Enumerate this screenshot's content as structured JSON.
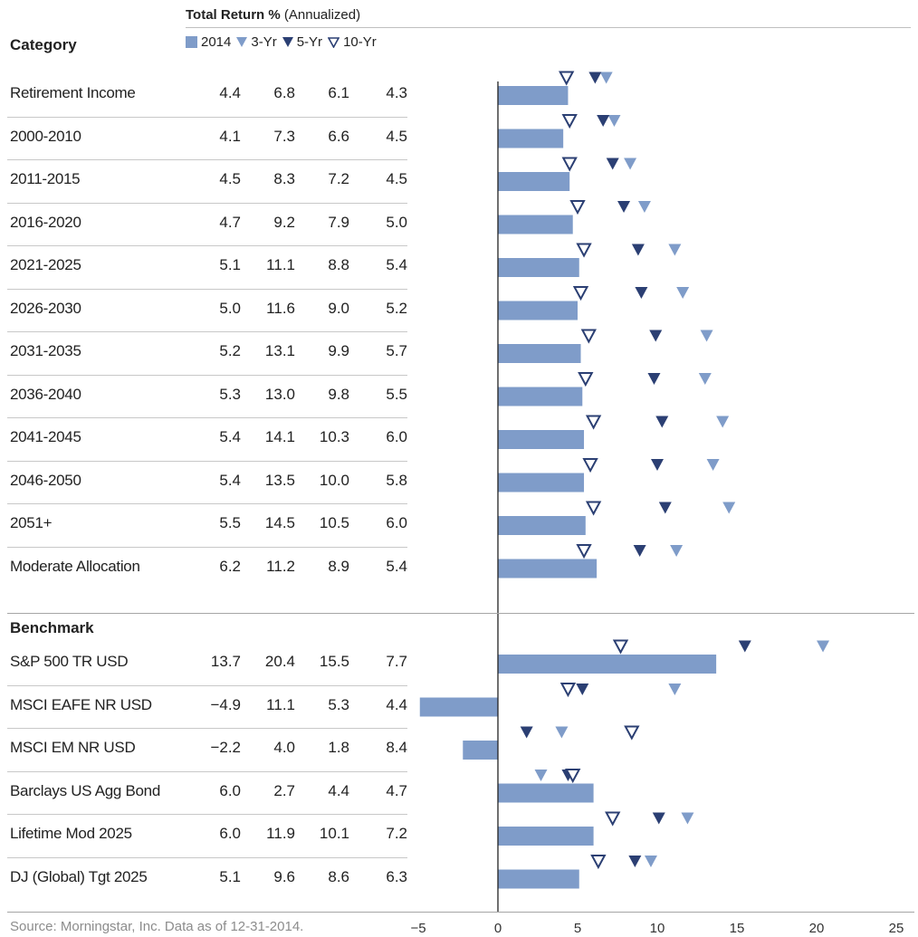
{
  "header": {
    "title_bold": "Total Return %",
    "title_rest": " (Annualized)",
    "category_label": "Category",
    "benchmark_label": "Benchmark"
  },
  "legend": [
    {
      "label": "2014",
      "shape": "square",
      "color": "#7f9cc9"
    },
    {
      "label": "3-Yr",
      "shape": "filled-triangle",
      "color": "#7f9cc9"
    },
    {
      "label": "5-Yr",
      "shape": "filled-triangle",
      "color": "#2b3f73"
    },
    {
      "label": "10-Yr",
      "shape": "open-triangle",
      "color": "#2b3f73"
    }
  ],
  "footer": "Source: Morningstar, Inc. Data as of 12-31-2014.",
  "chart_data": {
    "type": "bar",
    "title": "Total Return % (Annualized)",
    "xlim": [
      -5,
      25
    ],
    "xticks": [
      "−5",
      "0",
      "5",
      "10",
      "15",
      "20",
      "25"
    ],
    "xtick_values": [
      -5,
      0,
      5,
      10,
      15,
      20,
      25
    ],
    "colors": {
      "bar": "#7f9cc9",
      "three_yr": "#7f9cc9",
      "five_yr": "#2b3f73",
      "ten_yr": "#2b3f73"
    },
    "categories": [
      {
        "name": "Retirement Income",
        "v2014": 4.4,
        "y3": 6.8,
        "y5": 6.1,
        "y10": 4.3,
        "t2014": "4.4",
        "t3": "6.8",
        "t5": "6.1",
        "t10": "4.3"
      },
      {
        "name": "2000-2010",
        "v2014": 4.1,
        "y3": 7.3,
        "y5": 6.6,
        "y10": 4.5,
        "t2014": "4.1",
        "t3": "7.3",
        "t5": "6.6",
        "t10": "4.5"
      },
      {
        "name": "2011-2015",
        "v2014": 4.5,
        "y3": 8.3,
        "y5": 7.2,
        "y10": 4.5,
        "t2014": "4.5",
        "t3": "8.3",
        "t5": "7.2",
        "t10": "4.5"
      },
      {
        "name": "2016-2020",
        "v2014": 4.7,
        "y3": 9.2,
        "y5": 7.9,
        "y10": 5.0,
        "t2014": "4.7",
        "t3": "9.2",
        "t5": "7.9",
        "t10": "5.0"
      },
      {
        "name": "2021-2025",
        "v2014": 5.1,
        "y3": 11.1,
        "y5": 8.8,
        "y10": 5.4,
        "t2014": "5.1",
        "t3": "11.1",
        "t5": "8.8",
        "t10": "5.4"
      },
      {
        "name": "2026-2030",
        "v2014": 5.0,
        "y3": 11.6,
        "y5": 9.0,
        "y10": 5.2,
        "t2014": "5.0",
        "t3": "11.6",
        "t5": "9.0",
        "t10": "5.2"
      },
      {
        "name": "2031-2035",
        "v2014": 5.2,
        "y3": 13.1,
        "y5": 9.9,
        "y10": 5.7,
        "t2014": "5.2",
        "t3": "13.1",
        "t5": "9.9",
        "t10": "5.7"
      },
      {
        "name": "2036-2040",
        "v2014": 5.3,
        "y3": 13.0,
        "y5": 9.8,
        "y10": 5.5,
        "t2014": "5.3",
        "t3": "13.0",
        "t5": "9.8",
        "t10": "5.5"
      },
      {
        "name": "2041-2045",
        "v2014": 5.4,
        "y3": 14.1,
        "y5": 10.3,
        "y10": 6.0,
        "t2014": "5.4",
        "t3": "14.1",
        "t5": "10.3",
        "t10": "6.0"
      },
      {
        "name": "2046-2050",
        "v2014": 5.4,
        "y3": 13.5,
        "y5": 10.0,
        "y10": 5.8,
        "t2014": "5.4",
        "t3": "13.5",
        "t5": "10.0",
        "t10": "5.8"
      },
      {
        "name": "2051+",
        "v2014": 5.5,
        "y3": 14.5,
        "y5": 10.5,
        "y10": 6.0,
        "t2014": "5.5",
        "t3": "14.5",
        "t5": "10.5",
        "t10": "6.0"
      },
      {
        "name": "Moderate Allocation",
        "v2014": 6.2,
        "y3": 11.2,
        "y5": 8.9,
        "y10": 5.4,
        "t2014": "6.2",
        "t3": "11.2",
        "t5": "8.9",
        "t10": "5.4"
      }
    ],
    "benchmarks": [
      {
        "name": "S&P 500 TR USD",
        "v2014": 13.7,
        "y3": 20.4,
        "y5": 15.5,
        "y10": 7.7,
        "t2014": "13.7",
        "t3": "20.4",
        "t5": "15.5",
        "t10": "7.7"
      },
      {
        "name": "MSCI EAFE NR USD",
        "v2014": -4.9,
        "y3": 11.1,
        "y5": 5.3,
        "y10": 4.4,
        "t2014": "−4.9",
        "t3": "11.1",
        "t5": "5.3",
        "t10": "4.4"
      },
      {
        "name": "MSCI EM NR USD",
        "v2014": -2.2,
        "y3": 4.0,
        "y5": 1.8,
        "y10": 8.4,
        "t2014": "−2.2",
        "t3": "4.0",
        "t5": "1.8",
        "t10": "8.4"
      },
      {
        "name": "Barclays US Agg Bond",
        "v2014": 6.0,
        "y3": 2.7,
        "y5": 4.4,
        "y10": 4.7,
        "t2014": "6.0",
        "t3": "2.7",
        "t5": "4.4",
        "t10": "4.7"
      },
      {
        "name": "Lifetime Mod 2025",
        "v2014": 6.0,
        "y3": 11.9,
        "y5": 10.1,
        "y10": 7.2,
        "t2014": "6.0",
        "t3": "11.9",
        "t5": "10.1",
        "t10": "7.2"
      },
      {
        "name": "DJ (Global) Tgt 2025",
        "v2014": 5.1,
        "y3": 9.6,
        "y5": 8.6,
        "y10": 6.3,
        "t2014": "5.1",
        "t3": "9.6",
        "t5": "8.6",
        "t10": "6.3"
      }
    ]
  }
}
